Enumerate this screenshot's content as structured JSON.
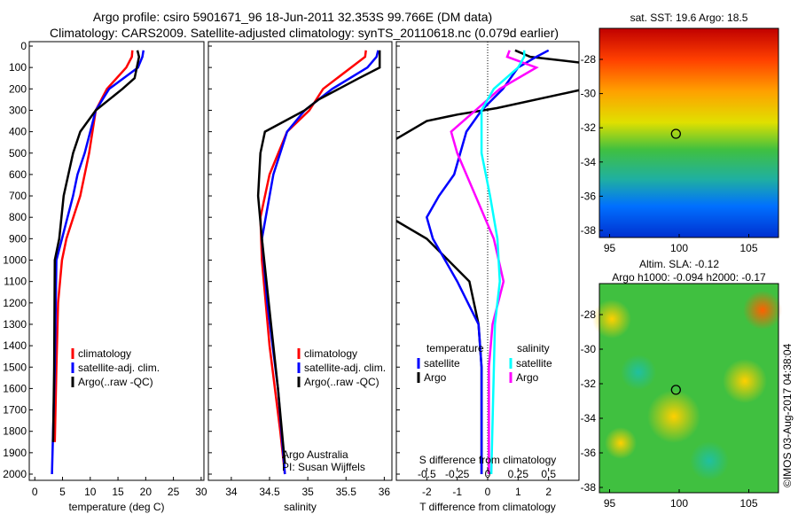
{
  "title_line1": "Argo profile: csiro 5901671_96 18-Jun-2011 32.353S 99.766E (DM data)",
  "title_line2": "Climatology: CARS2009. Satellite-adjusted climatology: synTS_20110618.nc (0.079d earlier)",
  "colors": {
    "clim": "#ff0000",
    "sat": "#0000ff",
    "argo": "#000000",
    "sat_s": "#00ffff",
    "argo_s": "#ff00ff"
  },
  "chart_data": [
    {
      "type": "line",
      "id": "temperature",
      "xlabel": "temperature (deg C)",
      "xlim": [
        -1,
        30.5
      ],
      "ylim": [
        2050,
        0
      ],
      "xticks": [
        0,
        5,
        10,
        15,
        20,
        25,
        30
      ],
      "yticks": [
        0,
        100,
        200,
        300,
        400,
        500,
        600,
        700,
        800,
        900,
        1000,
        1100,
        1200,
        1300,
        1400,
        1500,
        1600,
        1700,
        1800,
        1900,
        2000
      ],
      "legend": [
        "climatology",
        "satellite-adj. clim.",
        "Argo(..raw -QC)"
      ],
      "series": [
        {
          "name": "climatology",
          "color": "clim",
          "depth": [
            20,
            50,
            100,
            200,
            300,
            500,
            700,
            900,
            1000,
            1200,
            1500,
            1850
          ],
          "values": [
            17.6,
            17.5,
            16.5,
            13,
            11,
            9.8,
            8.2,
            5.7,
            4.9,
            4.2,
            3.9,
            3.6
          ]
        },
        {
          "name": "satellite-adj. clim.",
          "color": "sat",
          "depth": [
            20,
            50,
            100,
            200,
            300,
            400,
            500,
            600,
            700,
            900,
            1000,
            1500,
            2000
          ],
          "values": [
            19.6,
            19.4,
            18.6,
            13.4,
            11,
            10,
            9,
            7.7,
            6.9,
            4.9,
            3.9,
            3.6,
            3.1
          ]
        },
        {
          "name": "Argo",
          "color": "argo",
          "depth": [
            20,
            50,
            150,
            200,
            300,
            400,
            500,
            700,
            900,
            1000,
            1500,
            1850
          ],
          "values": [
            18.5,
            18.8,
            18,
            15.8,
            11,
            8.2,
            6.9,
            5.2,
            4.4,
            3.6,
            3.5,
            3.3
          ]
        }
      ]
    },
    {
      "type": "line",
      "id": "salinity",
      "xlabel": "salinity",
      "xlim": [
        33.7,
        36.1
      ],
      "ylim": [
        2050,
        0
      ],
      "xticks": [
        34,
        34.5,
        35,
        35.5,
        36
      ],
      "legend": [
        "climatology",
        "satellite-adj. clim.",
        "Argo(..raw -QC)"
      ],
      "annotation": [
        "Argo Australia",
        "PI: Susan Wijffels"
      ],
      "series": [
        {
          "name": "climatology",
          "color": "clim",
          "depth": [
            20,
            50,
            200,
            300,
            400,
            600,
            800,
            1000,
            1400,
            1800,
            2000
          ],
          "values": [
            35.76,
            35.75,
            35.2,
            35.02,
            34.73,
            34.5,
            34.38,
            34.4,
            34.5,
            34.64,
            34.7
          ]
        },
        {
          "name": "satellite-adj. clim.",
          "color": "sat",
          "depth": [
            20,
            50,
            100,
            200,
            300,
            400,
            600,
            900,
            1200,
            1600,
            2000
          ],
          "values": [
            35.92,
            35.9,
            35.78,
            35.32,
            34.96,
            34.73,
            34.55,
            34.4,
            34.47,
            34.61,
            34.7
          ]
        },
        {
          "name": "Argo",
          "color": "argo",
          "depth": [
            20,
            50,
            100,
            150,
            250,
            300,
            400,
            500,
            700,
            900,
            1200,
            1600,
            1950
          ],
          "values": [
            35.94,
            35.94,
            35.94,
            35.67,
            35.14,
            34.96,
            34.44,
            34.38,
            34.35,
            34.4,
            34.49,
            34.61,
            34.7
          ]
        }
      ]
    },
    {
      "type": "line",
      "id": "differences",
      "xlabel": "T difference from climatology",
      "xlabel2": "S difference from climatology",
      "xlim": [
        -3,
        3
      ],
      "xlim2": [
        -0.75,
        0.75
      ],
      "ylim": [
        2050,
        0
      ],
      "xticks": [
        -2,
        -1,
        0,
        1,
        2
      ],
      "xticks2": [
        -0.5,
        -0.25,
        0,
        0.25,
        0.5
      ],
      "legend": {
        "temperature": "temperature",
        "salinity": "salinity",
        "satellite": "satellite",
        "argo": "Argo"
      },
      "series": [
        {
          "name": "T Argo",
          "color": "argo",
          "axis": "T",
          "depth": [
            20,
            50,
            80,
            200,
            290,
            320,
            350,
            450,
            800,
            900,
            1000,
            1100,
            1300,
            1500,
            2000
          ],
          "values": [
            0.9,
            1.4,
            3.2,
            3.2,
            0.3,
            -1,
            -2,
            -3.2,
            -3.2,
            -2,
            -1.3,
            -0.6,
            -0.3,
            -0.2,
            -0.2
          ]
        },
        {
          "name": "T satellite",
          "color": "sat",
          "axis": "T",
          "depth": [
            20,
            50,
            100,
            200,
            300,
            400,
            600,
            700,
            800,
            900,
            1100,
            1300,
            1500,
            2000
          ],
          "values": [
            2,
            1.6,
            1.0,
            0.5,
            -0.2,
            -0.7,
            -1.1,
            -1.6,
            -2.0,
            -1.8,
            -1.0,
            -0.3,
            -0.2,
            -0.2
          ]
        },
        {
          "name": "S Argo",
          "color": "argo_s",
          "axis": "S",
          "depth": [
            20,
            50,
            100,
            200,
            300,
            400,
            500,
            700,
            900,
            1100,
            1300,
            1500,
            2000
          ],
          "values": [
            0.18,
            0.16,
            0.4,
            0.1,
            -0.1,
            -0.3,
            -0.25,
            -0.1,
            0.05,
            0.13,
            0.04,
            0.01,
            0.01
          ]
        },
        {
          "name": "S satellite",
          "color": "sat_s",
          "axis": "S",
          "depth": [
            20,
            50,
            100,
            200,
            300,
            500,
            700,
            900,
            1100,
            1300,
            2000
          ],
          "values": [
            0.3,
            0.3,
            0.25,
            0.05,
            -0.05,
            -0.05,
            0.02,
            0.08,
            0.1,
            0.06,
            0.03
          ]
        }
      ]
    }
  ],
  "maps": [
    {
      "title": "sat. SST: 19.6 Argo: 18.5",
      "xticks": [
        95,
        100,
        105
      ],
      "yticks": [
        -28,
        -30,
        -32,
        -34,
        -36,
        -38
      ]
    },
    {
      "title1": "Altim. SLA: -0.12",
      "title2": "Argo h1000: -0.094 h2000: -0.17",
      "xticks": [
        95,
        100,
        105
      ],
      "yticks": [
        -28,
        -30,
        -32,
        -34,
        -36,
        -38
      ]
    }
  ],
  "profile_location": {
    "lon": 99.766,
    "lat": -32.353
  },
  "credit": "©IMOS 03-Aug-2017 04:38:04"
}
